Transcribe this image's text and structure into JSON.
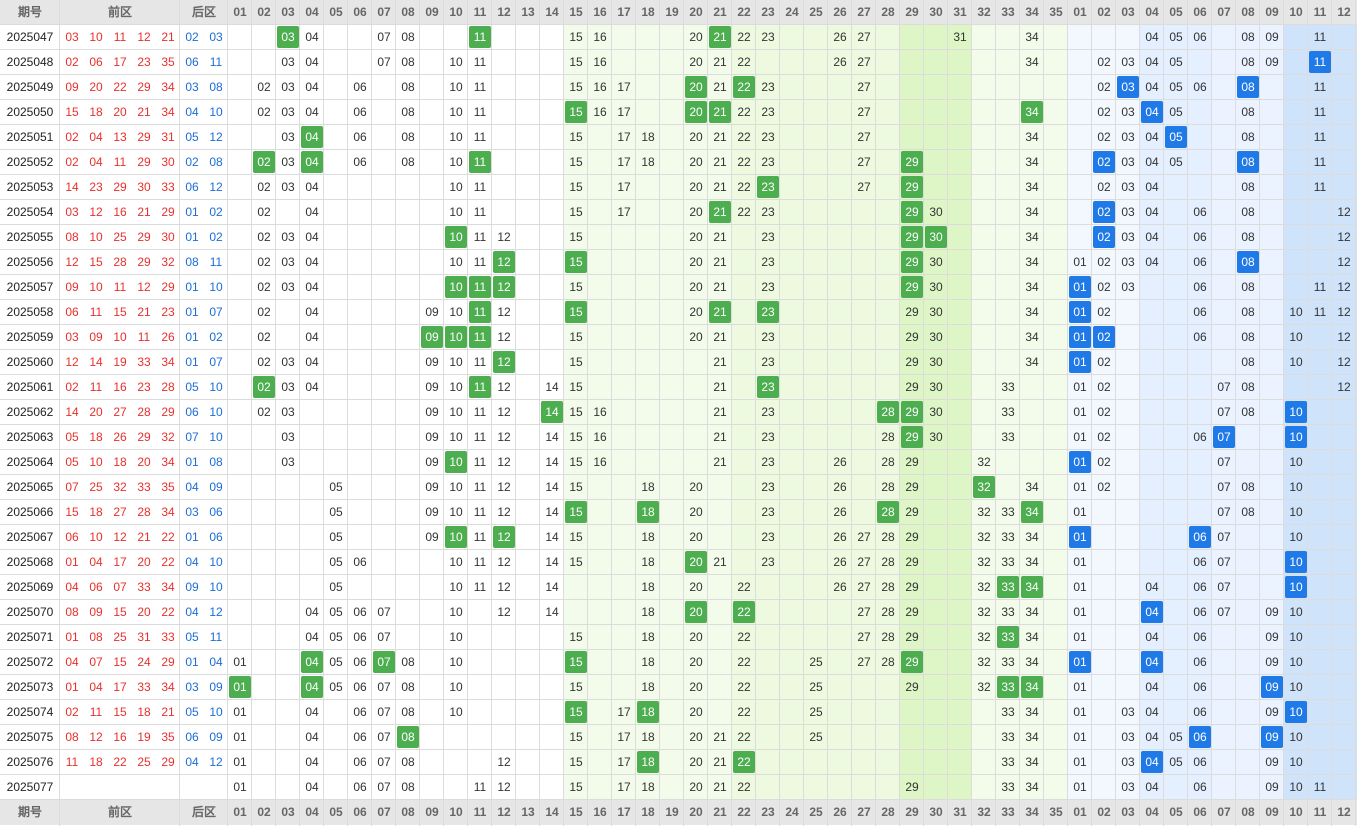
{
  "header": {
    "issue_label": "期号",
    "front_label": "前区",
    "back_label": "后区",
    "front_columns": [
      "01",
      "02",
      "03",
      "04",
      "05",
      "06",
      "07",
      "08",
      "09",
      "10",
      "11",
      "12",
      "13",
      "14",
      "15",
      "16",
      "17",
      "18",
      "19",
      "20",
      "21",
      "22",
      "23",
      "24",
      "25",
      "26",
      "27",
      "28",
      "29",
      "30",
      "31",
      "32",
      "33",
      "34",
      "35"
    ],
    "back_columns": [
      "01",
      "02",
      "03",
      "04",
      "05",
      "06",
      "07",
      "08",
      "09",
      "10",
      "11",
      "12"
    ]
  },
  "rows": [
    {
      "issue": "2025047",
      "front": [
        "03",
        "10",
        "11",
        "12",
        "21"
      ],
      "back": [
        "02",
        "03"
      ],
      "front_cells": [
        "04",
        "07",
        "08",
        "15",
        "16",
        "20",
        "22",
        "23",
        "26",
        "27",
        "31",
        "34"
      ],
      "front_hits": [
        "03",
        "11",
        "21"
      ],
      "back_cells": [
        "04",
        "05",
        "06",
        "08",
        "09",
        "11"
      ],
      "back_hits": []
    },
    {
      "issue": "2025048",
      "front": [
        "02",
        "06",
        "17",
        "23",
        "35"
      ],
      "back": [
        "06",
        "11"
      ],
      "front_cells": [
        "03",
        "04",
        "07",
        "08",
        "10",
        "11",
        "15",
        "16",
        "20",
        "21",
        "22",
        "26",
        "27",
        "34"
      ],
      "front_hits": [],
      "back_cells": [
        "02",
        "03",
        "04",
        "05",
        "08",
        "09"
      ],
      "back_hits": [
        "11"
      ]
    },
    {
      "issue": "2025049",
      "front": [
        "09",
        "20",
        "22",
        "29",
        "34"
      ],
      "back": [
        "03",
        "08"
      ],
      "front_cells": [
        "02",
        "03",
        "04",
        "06",
        "08",
        "10",
        "11",
        "15",
        "16",
        "17",
        "21",
        "23",
        "27"
      ],
      "front_hits": [
        "20",
        "22"
      ],
      "back_cells": [
        "02",
        "04",
        "05",
        "06",
        "11"
      ],
      "back_hits": [
        "03",
        "08"
      ]
    },
    {
      "issue": "2025050",
      "front": [
        "15",
        "18",
        "20",
        "21",
        "34"
      ],
      "back": [
        "04",
        "10"
      ],
      "front_cells": [
        "02",
        "03",
        "04",
        "06",
        "08",
        "10",
        "11",
        "16",
        "17",
        "22",
        "23",
        "27"
      ],
      "front_hits": [
        "15",
        "20",
        "21",
        "34"
      ],
      "back_cells": [
        "02",
        "03",
        "05",
        "08",
        "11"
      ],
      "back_hits": [
        "04"
      ]
    },
    {
      "issue": "2025051",
      "front": [
        "02",
        "04",
        "13",
        "29",
        "31"
      ],
      "back": [
        "05",
        "12"
      ],
      "front_cells": [
        "03",
        "06",
        "08",
        "10",
        "11",
        "15",
        "17",
        "18",
        "20",
        "21",
        "22",
        "23",
        "27",
        "34"
      ],
      "front_hits": [
        "04"
      ],
      "back_cells": [
        "02",
        "03",
        "04",
        "08",
        "11"
      ],
      "back_hits": [
        "05"
      ]
    },
    {
      "issue": "2025052",
      "front": [
        "02",
        "04",
        "11",
        "29",
        "30"
      ],
      "back": [
        "02",
        "08"
      ],
      "front_cells": [
        "03",
        "06",
        "08",
        "10",
        "15",
        "17",
        "18",
        "20",
        "21",
        "22",
        "23",
        "27",
        "34"
      ],
      "front_hits": [
        "02",
        "04",
        "11",
        "29"
      ],
      "back_cells": [
        "03",
        "04",
        "05",
        "11"
      ],
      "back_hits": [
        "02",
        "08"
      ]
    },
    {
      "issue": "2025053",
      "front": [
        "14",
        "23",
        "29",
        "30",
        "33"
      ],
      "back": [
        "06",
        "12"
      ],
      "front_cells": [
        "02",
        "03",
        "04",
        "10",
        "11",
        "15",
        "17",
        "20",
        "21",
        "22",
        "27",
        "34"
      ],
      "front_hits": [
        "23",
        "29"
      ],
      "back_cells": [
        "02",
        "03",
        "04",
        "08",
        "11"
      ],
      "back_hits": []
    },
    {
      "issue": "2025054",
      "front": [
        "03",
        "12",
        "16",
        "21",
        "29"
      ],
      "back": [
        "01",
        "02"
      ],
      "front_cells": [
        "02",
        "04",
        "10",
        "11",
        "15",
        "17",
        "20",
        "22",
        "23",
        "30",
        "34"
      ],
      "front_hits": [
        "21",
        "29"
      ],
      "back_cells": [
        "03",
        "04",
        "06",
        "08",
        "12"
      ],
      "back_hits": [
        "02"
      ]
    },
    {
      "issue": "2025055",
      "front": [
        "08",
        "10",
        "25",
        "29",
        "30"
      ],
      "back": [
        "01",
        "02"
      ],
      "front_cells": [
        "02",
        "03",
        "04",
        "11",
        "12",
        "15",
        "20",
        "21",
        "23",
        "34"
      ],
      "front_hits": [
        "10",
        "29",
        "30"
      ],
      "back_cells": [
        "03",
        "04",
        "06",
        "08",
        "12"
      ],
      "back_hits": [
        "02"
      ]
    },
    {
      "issue": "2025056",
      "front": [
        "12",
        "15",
        "28",
        "29",
        "32"
      ],
      "back": [
        "08",
        "11"
      ],
      "front_cells": [
        "02",
        "03",
        "04",
        "10",
        "11",
        "20",
        "21",
        "23",
        "30",
        "34"
      ],
      "front_hits": [
        "12",
        "15",
        "29"
      ],
      "back_cells": [
        "01",
        "02",
        "03",
        "04",
        "06",
        "12"
      ],
      "back_hits": [
        "08"
      ]
    },
    {
      "issue": "2025057",
      "front": [
        "09",
        "10",
        "11",
        "12",
        "29"
      ],
      "back": [
        "01",
        "10"
      ],
      "front_cells": [
        "02",
        "03",
        "04",
        "15",
        "20",
        "21",
        "23",
        "30",
        "34"
      ],
      "front_hits": [
        "10",
        "11",
        "12",
        "29"
      ],
      "back_cells": [
        "02",
        "03",
        "06",
        "08",
        "11",
        "12"
      ],
      "back_hits": [
        "01"
      ]
    },
    {
      "issue": "2025058",
      "front": [
        "06",
        "11",
        "15",
        "21",
        "23"
      ],
      "back": [
        "01",
        "07"
      ],
      "front_cells": [
        "02",
        "04",
        "09",
        "10",
        "12",
        "20",
        "29",
        "30",
        "34"
      ],
      "front_hits": [
        "11",
        "15",
        "21",
        "23"
      ],
      "back_cells": [
        "02",
        "06",
        "08",
        "10",
        "11",
        "12"
      ],
      "back_hits": [
        "01"
      ]
    },
    {
      "issue": "2025059",
      "front": [
        "03",
        "09",
        "10",
        "11",
        "26"
      ],
      "back": [
        "01",
        "02"
      ],
      "front_cells": [
        "02",
        "04",
        "12",
        "15",
        "20",
        "21",
        "23",
        "29",
        "30",
        "34"
      ],
      "front_hits": [
        "09",
        "10",
        "11"
      ],
      "back_cells": [
        "06",
        "08",
        "10",
        "12"
      ],
      "back_hits": [
        "01",
        "02"
      ]
    },
    {
      "issue": "2025060",
      "front": [
        "12",
        "14",
        "19",
        "33",
        "34"
      ],
      "back": [
        "01",
        "07"
      ],
      "front_cells": [
        "02",
        "03",
        "04",
        "09",
        "10",
        "11",
        "15",
        "21",
        "23",
        "29",
        "30",
        "34"
      ],
      "front_hits": [
        "12"
      ],
      "back_cells": [
        "02",
        "08",
        "10",
        "12"
      ],
      "back_hits": [
        "01"
      ]
    },
    {
      "issue": "2025061",
      "front": [
        "02",
        "11",
        "16",
        "23",
        "28"
      ],
      "back": [
        "05",
        "10"
      ],
      "front_cells": [
        "03",
        "04",
        "09",
        "10",
        "12",
        "14",
        "15",
        "21",
        "29",
        "30",
        "33"
      ],
      "front_hits": [
        "02",
        "11",
        "23"
      ],
      "back_cells": [
        "01",
        "02",
        "07",
        "08",
        "12"
      ],
      "back_hits": []
    },
    {
      "issue": "2025062",
      "front": [
        "14",
        "20",
        "27",
        "28",
        "29"
      ],
      "back": [
        "06",
        "10"
      ],
      "front_cells": [
        "02",
        "03",
        "09",
        "10",
        "11",
        "12",
        "15",
        "16",
        "21",
        "23",
        "30",
        "33"
      ],
      "front_hits": [
        "14",
        "28",
        "29"
      ],
      "back_cells": [
        "01",
        "02",
        "07",
        "08"
      ],
      "back_hits": [
        "10"
      ]
    },
    {
      "issue": "2025063",
      "front": [
        "05",
        "18",
        "26",
        "29",
        "32"
      ],
      "back": [
        "07",
        "10"
      ],
      "front_cells": [
        "03",
        "09",
        "10",
        "11",
        "12",
        "14",
        "15",
        "16",
        "21",
        "23",
        "28",
        "30",
        "33"
      ],
      "front_hits": [
        "29"
      ],
      "back_cells": [
        "01",
        "02",
        "06"
      ],
      "back_hits": [
        "07",
        "10"
      ]
    },
    {
      "issue": "2025064",
      "front": [
        "05",
        "10",
        "18",
        "20",
        "34"
      ],
      "back": [
        "01",
        "08"
      ],
      "front_cells": [
        "03",
        "09",
        "11",
        "12",
        "14",
        "15",
        "16",
        "21",
        "23",
        "26",
        "28",
        "29",
        "32"
      ],
      "front_hits": [
        "10"
      ],
      "back_cells": [
        "02",
        "07",
        "10"
      ],
      "back_hits": [
        "01"
      ]
    },
    {
      "issue": "2025065",
      "front": [
        "07",
        "25",
        "32",
        "33",
        "35"
      ],
      "back": [
        "04",
        "09"
      ],
      "front_cells": [
        "05",
        "09",
        "10",
        "11",
        "12",
        "14",
        "15",
        "18",
        "20",
        "23",
        "26",
        "28",
        "29",
        "34"
      ],
      "front_hits": [
        "32"
      ],
      "back_cells": [
        "01",
        "02",
        "07",
        "08",
        "10"
      ],
      "back_hits": []
    },
    {
      "issue": "2025066",
      "front": [
        "15",
        "18",
        "27",
        "28",
        "34"
      ],
      "back": [
        "03",
        "06"
      ],
      "front_cells": [
        "05",
        "09",
        "10",
        "11",
        "12",
        "14",
        "20",
        "23",
        "26",
        "29",
        "32",
        "33"
      ],
      "front_hits": [
        "15",
        "18",
        "28",
        "34"
      ],
      "back_cells": [
        "01",
        "07",
        "08",
        "10"
      ],
      "back_hits": []
    },
    {
      "issue": "2025067",
      "front": [
        "06",
        "10",
        "12",
        "21",
        "22"
      ],
      "back": [
        "01",
        "06"
      ],
      "front_cells": [
        "05",
        "09",
        "11",
        "14",
        "15",
        "18",
        "20",
        "23",
        "26",
        "27",
        "28",
        "29",
        "32",
        "33",
        "34"
      ],
      "front_hits": [
        "10",
        "12"
      ],
      "back_cells": [
        "07",
        "10"
      ],
      "back_hits": [
        "01",
        "06"
      ]
    },
    {
      "issue": "2025068",
      "front": [
        "01",
        "04",
        "17",
        "20",
        "22"
      ],
      "back": [
        "04",
        "10"
      ],
      "front_cells": [
        "05",
        "06",
        "10",
        "11",
        "12",
        "14",
        "15",
        "18",
        "21",
        "23",
        "26",
        "27",
        "28",
        "29",
        "32",
        "33",
        "34"
      ],
      "front_hits": [
        "20"
      ],
      "back_cells": [
        "01",
        "06",
        "07"
      ],
      "back_hits": [
        "10"
      ]
    },
    {
      "issue": "2025069",
      "front": [
        "04",
        "06",
        "07",
        "33",
        "34"
      ],
      "back": [
        "09",
        "10"
      ],
      "front_cells": [
        "05",
        "10",
        "11",
        "12",
        "14",
        "18",
        "20",
        "22",
        "26",
        "27",
        "28",
        "29",
        "32"
      ],
      "front_hits": [
        "33",
        "34"
      ],
      "back_cells": [
        "01",
        "04",
        "06",
        "07"
      ],
      "back_hits": [
        "10"
      ]
    },
    {
      "issue": "2025070",
      "front": [
        "08",
        "09",
        "15",
        "20",
        "22"
      ],
      "back": [
        "04",
        "12"
      ],
      "front_cells": [
        "04",
        "05",
        "06",
        "07",
        "10",
        "12",
        "14",
        "18",
        "27",
        "28",
        "29",
        "32",
        "33",
        "34"
      ],
      "front_hits": [
        "20",
        "22"
      ],
      "back_cells": [
        "01",
        "06",
        "07",
        "09",
        "10"
      ],
      "back_hits": [
        "04"
      ]
    },
    {
      "issue": "2025071",
      "front": [
        "01",
        "08",
        "25",
        "31",
        "33"
      ],
      "back": [
        "05",
        "11"
      ],
      "front_cells": [
        "04",
        "05",
        "06",
        "07",
        "10",
        "15",
        "18",
        "20",
        "22",
        "27",
        "28",
        "29",
        "32",
        "34"
      ],
      "front_hits": [
        "33"
      ],
      "back_cells": [
        "01",
        "04",
        "06",
        "09",
        "10"
      ],
      "back_hits": []
    },
    {
      "issue": "2025072",
      "front": [
        "04",
        "07",
        "15",
        "24",
        "29"
      ],
      "back": [
        "01",
        "04"
      ],
      "front_cells": [
        "01",
        "05",
        "06",
        "08",
        "10",
        "18",
        "20",
        "22",
        "25",
        "27",
        "28",
        "32",
        "33",
        "34"
      ],
      "front_hits": [
        "04",
        "07",
        "15",
        "29"
      ],
      "back_cells": [
        "06",
        "09",
        "10"
      ],
      "back_hits": [
        "01",
        "04"
      ]
    },
    {
      "issue": "2025073",
      "front": [
        "01",
        "04",
        "17",
        "33",
        "34"
      ],
      "back": [
        "03",
        "09"
      ],
      "front_cells": [
        "05",
        "06",
        "07",
        "08",
        "10",
        "15",
        "18",
        "20",
        "22",
        "25",
        "29",
        "32"
      ],
      "front_hits": [
        "01",
        "04",
        "33",
        "34"
      ],
      "back_cells": [
        "01",
        "04",
        "06",
        "10"
      ],
      "back_hits": [
        "09"
      ]
    },
    {
      "issue": "2025074",
      "front": [
        "02",
        "11",
        "15",
        "18",
        "21"
      ],
      "back": [
        "05",
        "10"
      ],
      "front_cells": [
        "01",
        "04",
        "06",
        "07",
        "08",
        "10",
        "17",
        "20",
        "22",
        "25",
        "33",
        "34"
      ],
      "front_hits": [
        "15",
        "18"
      ],
      "back_cells": [
        "01",
        "03",
        "04",
        "06",
        "09"
      ],
      "back_hits": [
        "10"
      ]
    },
    {
      "issue": "2025075",
      "front": [
        "08",
        "12",
        "16",
        "19",
        "35"
      ],
      "back": [
        "06",
        "09"
      ],
      "front_cells": [
        "01",
        "04",
        "06",
        "07",
        "15",
        "17",
        "18",
        "20",
        "21",
        "22",
        "25",
        "33",
        "34"
      ],
      "front_hits": [
        "08"
      ],
      "back_cells": [
        "01",
        "03",
        "04",
        "05",
        "10"
      ],
      "back_hits": [
        "06",
        "09"
      ]
    },
    {
      "issue": "2025076",
      "front": [
        "11",
        "18",
        "22",
        "25",
        "29"
      ],
      "back": [
        "04",
        "12"
      ],
      "front_cells": [
        "01",
        "04",
        "06",
        "07",
        "08",
        "12",
        "15",
        "17",
        "20",
        "21",
        "33",
        "34"
      ],
      "front_hits": [
        "18",
        "22"
      ],
      "back_cells": [
        "01",
        "03",
        "05",
        "06",
        "09",
        "10"
      ],
      "back_hits": [
        "04"
      ]
    },
    {
      "issue": "2025077",
      "front": [],
      "back": [],
      "front_cells": [
        "01",
        "04",
        "06",
        "07",
        "08",
        "11",
        "12",
        "15",
        "17",
        "18",
        "20",
        "21",
        "22",
        "29",
        "33",
        "34"
      ],
      "front_hits": [],
      "back_cells": [
        "01",
        "03",
        "04",
        "06",
        "09",
        "10",
        "11"
      ],
      "back_hits": []
    }
  ]
}
